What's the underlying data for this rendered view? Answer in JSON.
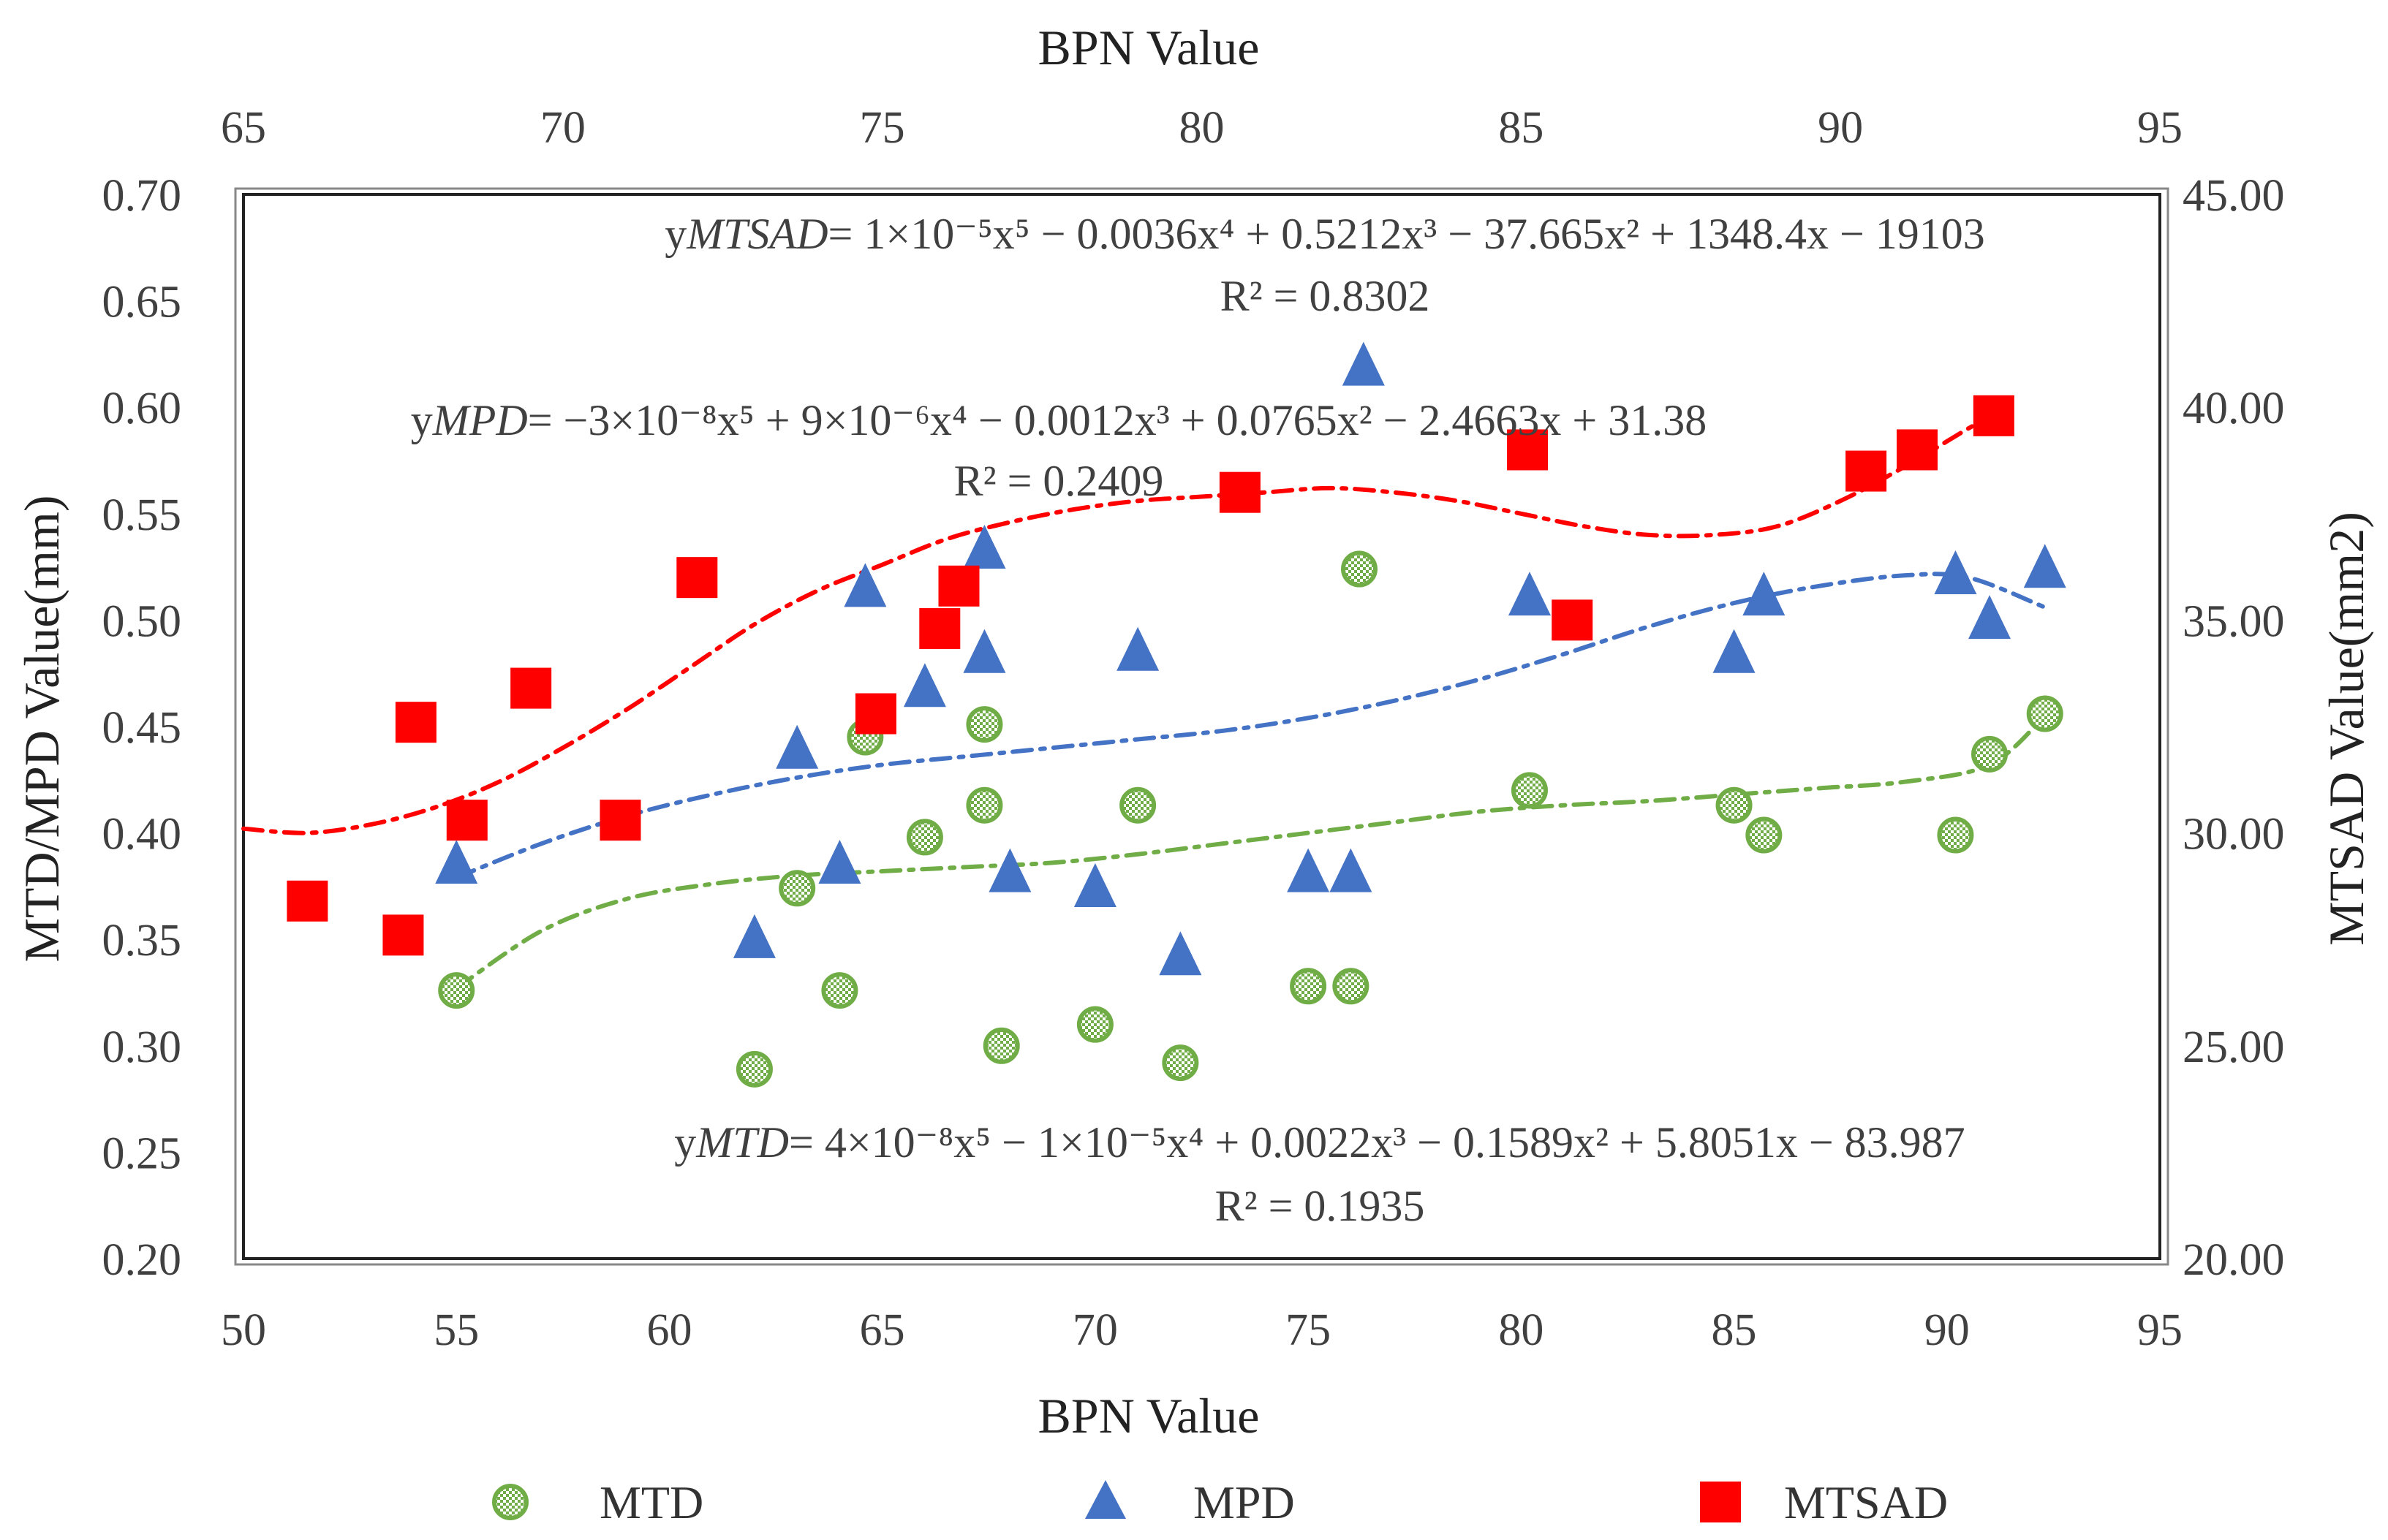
{
  "chart_data": {
    "type": "scatter",
    "x_bottom": {
      "label": "BPN Value",
      "range": [
        50,
        95
      ],
      "ticks": [
        "50",
        "55",
        "60",
        "65",
        "70",
        "75",
        "80",
        "85",
        "90",
        "95"
      ]
    },
    "x_top": {
      "label": "BPN Value",
      "range": [
        65,
        95
      ],
      "ticks": [
        "65",
        "70",
        "75",
        "80",
        "85",
        "90",
        "95"
      ]
    },
    "y_left": {
      "label": "MTD/MPD Value(mm)",
      "range": [
        0.2,
        0.7
      ],
      "ticks": [
        "0.20",
        "0.25",
        "0.30",
        "0.35",
        "0.40",
        "0.45",
        "0.50",
        "0.55",
        "0.60",
        "0.65",
        "0.70"
      ]
    },
    "y_right": {
      "label": "MTSAD Value(mm2)",
      "range": [
        20,
        45
      ],
      "ticks": [
        "20.00",
        "25.00",
        "30.00",
        "35.00",
        "40.00",
        "45.00"
      ]
    },
    "grid": false,
    "legend_position": "bottom",
    "series": [
      {
        "name": "MTD",
        "axes": "bottom-left",
        "marker": "circle-hatched",
        "color": "#70ad47",
        "points": [
          [
            55.0,
            0.326
          ],
          [
            62.0,
            0.289
          ],
          [
            63.0,
            0.374
          ],
          [
            64.0,
            0.326
          ],
          [
            64.6,
            0.445
          ],
          [
            66.0,
            0.398
          ],
          [
            67.4,
            0.451
          ],
          [
            67.4,
            0.413
          ],
          [
            67.8,
            0.3
          ],
          [
            70.0,
            0.31
          ],
          [
            71.0,
            0.413
          ],
          [
            72.0,
            0.292
          ],
          [
            75.0,
            0.328
          ],
          [
            76.0,
            0.328
          ],
          [
            76.2,
            0.524
          ],
          [
            80.2,
            0.42
          ],
          [
            85.0,
            0.413
          ],
          [
            85.7,
            0.399
          ],
          [
            90.2,
            0.399
          ],
          [
            91.0,
            0.437
          ],
          [
            92.3,
            0.456
          ]
        ]
      },
      {
        "name": "MPD",
        "axes": "bottom-left",
        "marker": "triangle",
        "color": "#4472c4",
        "points": [
          [
            55.0,
            0.384
          ],
          [
            62.0,
            0.349
          ],
          [
            63.0,
            0.438
          ],
          [
            64.0,
            0.384
          ],
          [
            64.6,
            0.514
          ],
          [
            66.0,
            0.467
          ],
          [
            67.4,
            0.532
          ],
          [
            67.4,
            0.483
          ],
          [
            68.0,
            0.38
          ],
          [
            70.0,
            0.373
          ],
          [
            71.0,
            0.484
          ],
          [
            72.0,
            0.341
          ],
          [
            75.0,
            0.38
          ],
          [
            76.0,
            0.38
          ],
          [
            76.3,
            0.618
          ],
          [
            80.2,
            0.51
          ],
          [
            85.0,
            0.483
          ],
          [
            85.7,
            0.51
          ],
          [
            90.2,
            0.52
          ],
          [
            91.0,
            0.499
          ],
          [
            92.3,
            0.523
          ]
        ]
      },
      {
        "name": "MTSAD",
        "axes": "top-right",
        "marker": "square",
        "color": "#ff0000",
        "points": [
          [
            66.0,
            28.4
          ],
          [
            67.5,
            27.6
          ],
          [
            67.7,
            32.6
          ],
          [
            68.5,
            30.3
          ],
          [
            69.5,
            33.4
          ],
          [
            70.9,
            30.3
          ],
          [
            72.1,
            36.0
          ],
          [
            74.9,
            32.8
          ],
          [
            75.9,
            34.8
          ],
          [
            76.2,
            35.8
          ],
          [
            80.6,
            38.0
          ],
          [
            85.1,
            39.0
          ],
          [
            85.8,
            35.0
          ],
          [
            90.4,
            38.5
          ],
          [
            91.2,
            39.0
          ],
          [
            92.4,
            39.8
          ]
        ]
      }
    ],
    "trendlines": [
      {
        "series": "MTSAD",
        "color": "#ff0000",
        "equation_prefix": "y",
        "equation_subscript": "MTSAD",
        "equation_body": "= 1×10⁻⁵x⁵ − 0.0036x⁴ + 0.5212x³ − 37.665x² + 1348.4x − 19103",
        "r_squared": "R² = 0.8302",
        "curve": [
          [
            65,
            30.1
          ],
          [
            66,
            30.0
          ],
          [
            67,
            30.2
          ],
          [
            68,
            30.6
          ],
          [
            69,
            31.2
          ],
          [
            70,
            32.0
          ],
          [
            71,
            32.9
          ],
          [
            72,
            33.9
          ],
          [
            73,
            34.9
          ],
          [
            74,
            35.7
          ],
          [
            75,
            36.3
          ],
          [
            76,
            36.9
          ],
          [
            77,
            37.3
          ],
          [
            78,
            37.6
          ],
          [
            79,
            37.8
          ],
          [
            80,
            37.9
          ],
          [
            81,
            38.0
          ],
          [
            82,
            38.1
          ],
          [
            83,
            38.0
          ],
          [
            84,
            37.8
          ],
          [
            85,
            37.5
          ],
          [
            86,
            37.2
          ],
          [
            87,
            37.0
          ],
          [
            88,
            37.0
          ],
          [
            89,
            37.2
          ],
          [
            90,
            37.8
          ],
          [
            91,
            38.6
          ],
          [
            92,
            39.5
          ],
          [
            92.5,
            39.9
          ]
        ]
      },
      {
        "series": "MPD",
        "color": "#4472c4",
        "equation_prefix": "y",
        "equation_subscript": "MPD",
        "equation_body": "= −3×10⁻⁸x⁵ + 9×10⁻⁶x⁴ − 0.0012x³ + 0.0765x² − 2.4663x + 31.38",
        "r_squared": "R² = 0.2409",
        "curve": [
          [
            55,
            0.379
          ],
          [
            57,
            0.395
          ],
          [
            59,
            0.408
          ],
          [
            61,
            0.418
          ],
          [
            63,
            0.426
          ],
          [
            65,
            0.432
          ],
          [
            67,
            0.436
          ],
          [
            69,
            0.44
          ],
          [
            71,
            0.444
          ],
          [
            73,
            0.448
          ],
          [
            75,
            0.454
          ],
          [
            77,
            0.462
          ],
          [
            79,
            0.472
          ],
          [
            81,
            0.484
          ],
          [
            83,
            0.497
          ],
          [
            85,
            0.508
          ],
          [
            87,
            0.516
          ],
          [
            89,
            0.521
          ],
          [
            90.5,
            0.52
          ],
          [
            92.3,
            0.506
          ]
        ]
      },
      {
        "series": "MTD",
        "color": "#70ad47",
        "equation_prefix": "y",
        "equation_subscript": "MTD",
        "equation_body": "= 4×10⁻⁸x⁵ − 1×10⁻⁵x⁴ + 0.0022x³ − 0.1589x² + 5.8051x − 83.987",
        "r_squared": "R² = 0.1935",
        "curve": [
          [
            55,
            0.327
          ],
          [
            57,
            0.354
          ],
          [
            59,
            0.369
          ],
          [
            61,
            0.376
          ],
          [
            63,
            0.38
          ],
          [
            65,
            0.382
          ],
          [
            67,
            0.384
          ],
          [
            69,
            0.386
          ],
          [
            71,
            0.39
          ],
          [
            73,
            0.395
          ],
          [
            75,
            0.4
          ],
          [
            77,
            0.405
          ],
          [
            79,
            0.41
          ],
          [
            81,
            0.413
          ],
          [
            83,
            0.415
          ],
          [
            85,
            0.418
          ],
          [
            87,
            0.421
          ],
          [
            89,
            0.424
          ],
          [
            91,
            0.432
          ],
          [
            92.3,
            0.455
          ]
        ]
      }
    ],
    "legend": [
      "MTD",
      "MPD",
      "MTSAD"
    ]
  }
}
